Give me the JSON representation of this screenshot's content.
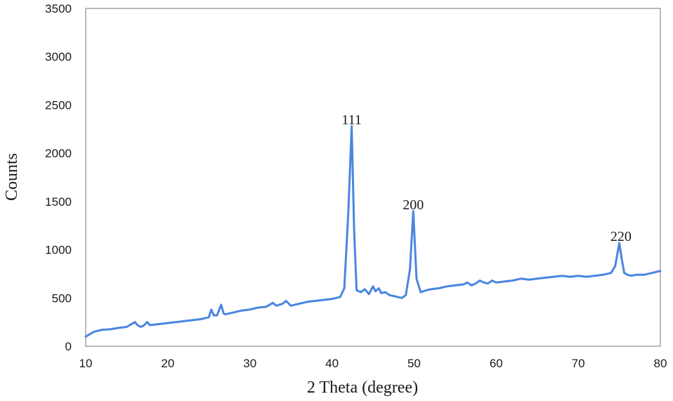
{
  "chart_data": {
    "type": "line",
    "title": "",
    "xlabel": "2 Theta (degree)",
    "ylabel": "Counts",
    "xlim": [
      10,
      80
    ],
    "ylim": [
      0,
      3500
    ],
    "x_ticks": [
      10,
      20,
      30,
      40,
      50,
      60,
      70,
      80
    ],
    "y_ticks": [
      0,
      500,
      1000,
      1500,
      2000,
      2500,
      3000,
      3500
    ],
    "grid": false,
    "legend": "none",
    "line_color": "#4a86e0",
    "series": [
      {
        "x": [
          10,
          11,
          12,
          13,
          14,
          15,
          16,
          16.3,
          16.7,
          17,
          17.5,
          17.8,
          18,
          19,
          20,
          21,
          22,
          23,
          24,
          25,
          25.3,
          25.6,
          26,
          26.5,
          26.8,
          27,
          28,
          29,
          30,
          31,
          32,
          32.8,
          33.2,
          34,
          34.4,
          35,
          36,
          37,
          38,
          39,
          40,
          41,
          41.5,
          42,
          42.4,
          42.7,
          43,
          43.5,
          44,
          44.5,
          45,
          45.3,
          45.7,
          46,
          46.5,
          47,
          47.5,
          48,
          48.5,
          49,
          49.5,
          49.9,
          50.3,
          50.8,
          51.5,
          52,
          53,
          54,
          55,
          56,
          56.5,
          57,
          57.5,
          58,
          58.5,
          59,
          59.5,
          60,
          61,
          62,
          63,
          64,
          65,
          66,
          67,
          68,
          69,
          70,
          71,
          72,
          73,
          74,
          74.5,
          75,
          75.3,
          75.6,
          76,
          76.5,
          77,
          78,
          79,
          80
        ],
        "y": [
          100,
          150,
          170,
          175,
          190,
          200,
          250,
          220,
          200,
          210,
          250,
          220,
          220,
          230,
          240,
          250,
          260,
          270,
          280,
          300,
          380,
          320,
          320,
          430,
          340,
          330,
          350,
          370,
          380,
          400,
          410,
          450,
          420,
          440,
          470,
          420,
          440,
          460,
          470,
          480,
          490,
          510,
          600,
          1400,
          2280,
          1200,
          580,
          560,
          590,
          540,
          620,
          570,
          600,
          550,
          560,
          530,
          520,
          510,
          500,
          530,
          800,
          1400,
          700,
          560,
          580,
          590,
          600,
          620,
          630,
          640,
          660,
          630,
          650,
          680,
          660,
          650,
          680,
          660,
          670,
          680,
          700,
          690,
          700,
          710,
          720,
          730,
          720,
          730,
          720,
          730,
          740,
          760,
          830,
          1070,
          900,
          760,
          740,
          730,
          740,
          740,
          760,
          780
        ]
      }
    ],
    "annotations": [
      {
        "text": "111",
        "x": 42.4,
        "y": 2300
      },
      {
        "text": "200",
        "x": 49.9,
        "y": 1420
      },
      {
        "text": "220",
        "x": 75.2,
        "y": 1090
      }
    ]
  }
}
